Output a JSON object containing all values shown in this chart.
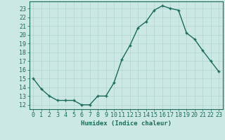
{
  "x": [
    0,
    1,
    2,
    3,
    4,
    5,
    6,
    7,
    8,
    9,
    10,
    11,
    12,
    13,
    14,
    15,
    16,
    17,
    18,
    19,
    20,
    21,
    22,
    23
  ],
  "y": [
    15,
    13.8,
    13,
    12.5,
    12.5,
    12.5,
    12,
    12,
    13,
    13,
    14.5,
    17.2,
    18.8,
    20.8,
    21.5,
    22.8,
    23.3,
    23,
    22.8,
    20.2,
    19.5,
    18.2,
    17,
    15.8
  ],
  "line_color": "#1a6b5a",
  "marker": "+",
  "bg_color": "#cce8e4",
  "grid_color": "#b0d4d0",
  "xlabel": "Humidex (Indice chaleur)",
  "ylim": [
    11.5,
    23.8
  ],
  "xlim": [
    -0.5,
    23.5
  ],
  "yticks": [
    12,
    13,
    14,
    15,
    16,
    17,
    18,
    19,
    20,
    21,
    22,
    23
  ],
  "xticks": [
    0,
    1,
    2,
    3,
    4,
    5,
    6,
    7,
    8,
    9,
    10,
    11,
    12,
    13,
    14,
    15,
    16,
    17,
    18,
    19,
    20,
    21,
    22,
    23
  ],
  "xtick_labels": [
    "0",
    "1",
    "2",
    "3",
    "4",
    "5",
    "6",
    "7",
    "8",
    "9",
    "10",
    "11",
    "12",
    "13",
    "14",
    "15",
    "16",
    "17",
    "18",
    "19",
    "20",
    "21",
    "22",
    "23"
  ],
  "axis_fontsize": 6.5,
  "tick_fontsize": 6,
  "linewidth": 1.0,
  "markersize": 3.5
}
